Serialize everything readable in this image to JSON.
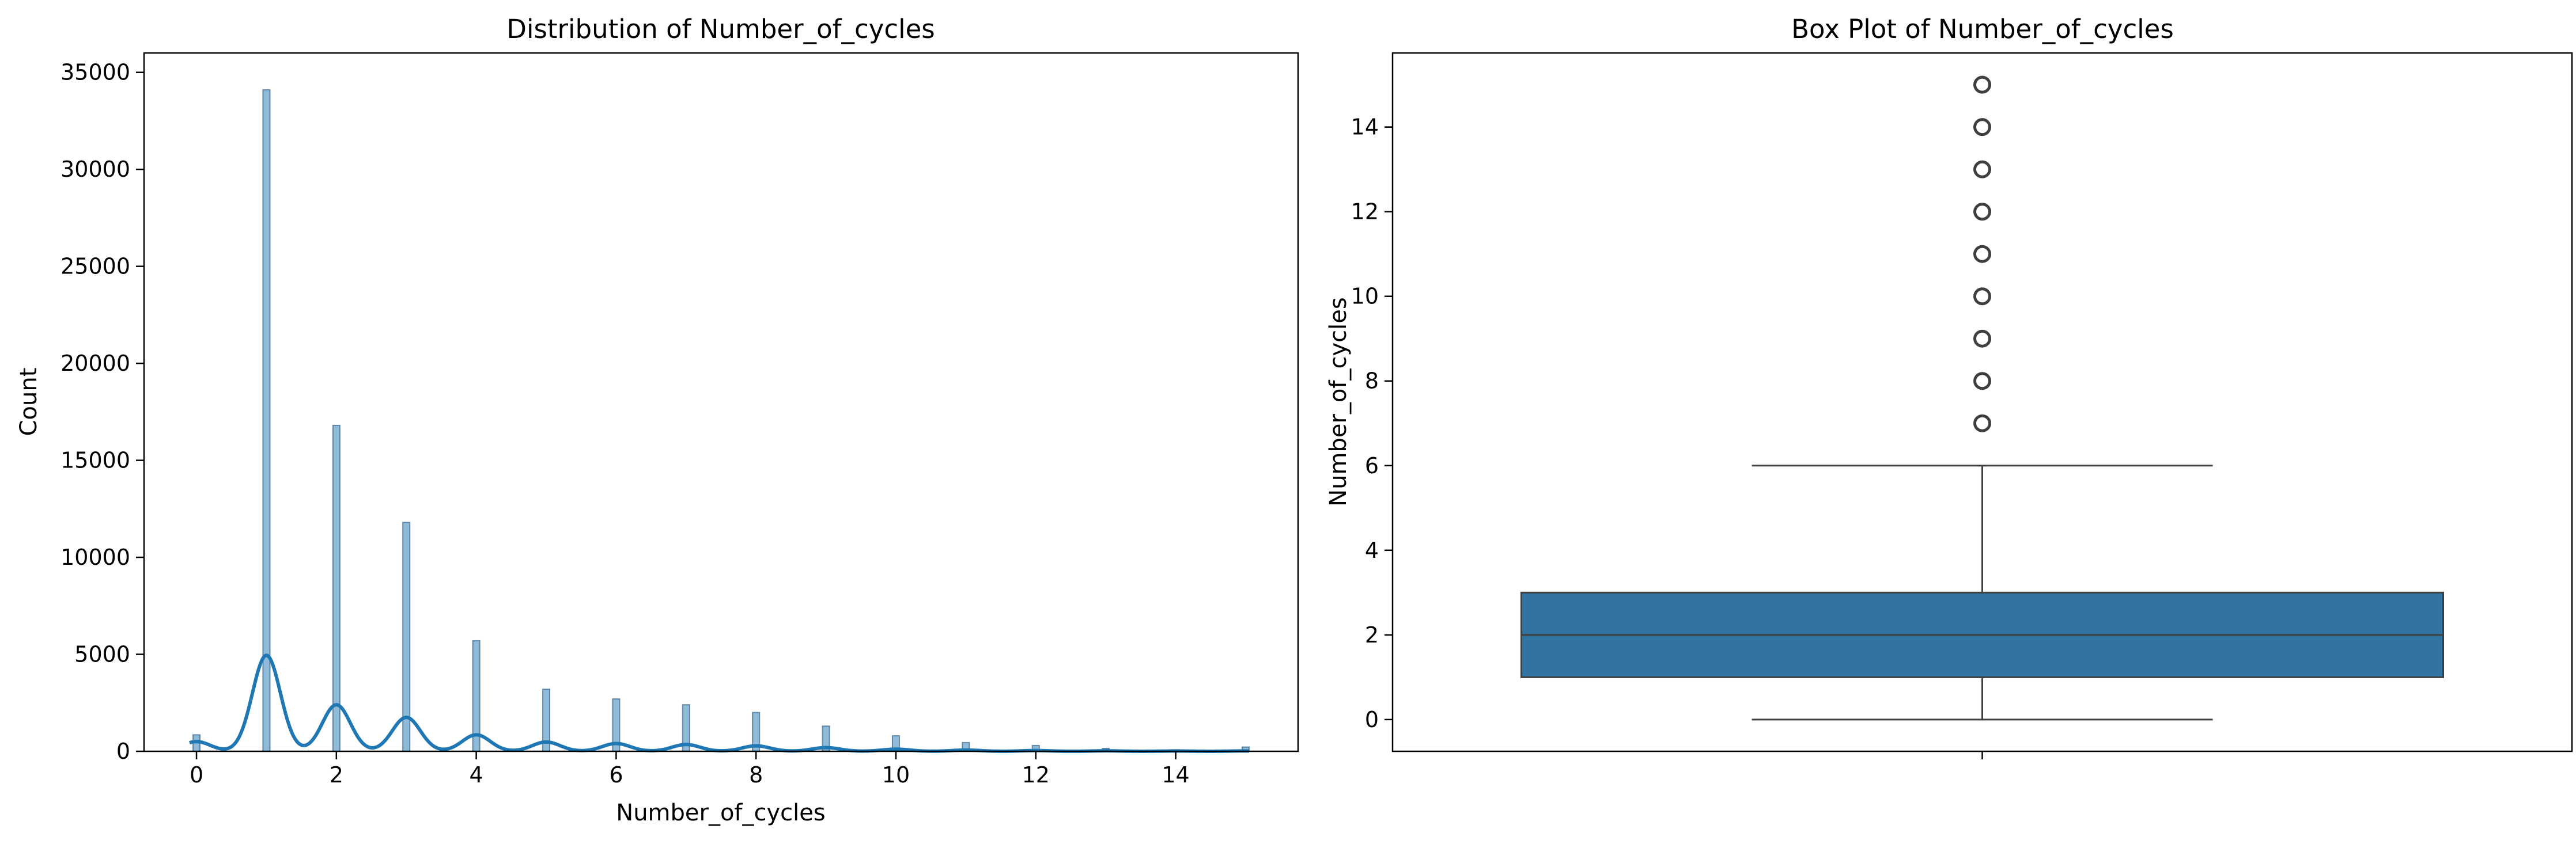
{
  "chart_data": [
    {
      "type": "bar",
      "subtype": "histogram-with-kde",
      "title": "Distribution of Number_of_cycles",
      "xlabel": "Number_of_cycles",
      "ylabel": "Count",
      "xlim": [
        -0.75,
        15.75
      ],
      "ylim": [
        0,
        36000
      ],
      "xticks": [
        0,
        2,
        4,
        6,
        8,
        10,
        12,
        14
      ],
      "yticks": [
        0,
        5000,
        10000,
        15000,
        20000,
        25000,
        30000,
        35000
      ],
      "grid": false,
      "legend": null,
      "bar_color": "#1f77b4",
      "bar_alpha": 0.5,
      "bins": [
        {
          "x": 0,
          "count": 850
        },
        {
          "x": 1,
          "count": 34100
        },
        {
          "x": 2,
          "count": 16800
        },
        {
          "x": 3,
          "count": 11800
        },
        {
          "x": 4,
          "count": 5700
        },
        {
          "x": 5,
          "count": 3200
        },
        {
          "x": 6,
          "count": 2700
        },
        {
          "x": 7,
          "count": 2400
        },
        {
          "x": 8,
          "count": 2000
        },
        {
          "x": 9,
          "count": 1300
        },
        {
          "x": 10,
          "count": 800
        },
        {
          "x": 11,
          "count": 450
        },
        {
          "x": 12,
          "count": 300
        },
        {
          "x": 13,
          "count": 150
        },
        {
          "x": 14,
          "count": 80
        },
        {
          "x": 15,
          "count": 220
        }
      ],
      "kde": {
        "color": "#1f77b4",
        "peaks": [
          {
            "x": 0,
            "y": 500
          },
          {
            "x": 1,
            "y": 4950
          },
          {
            "x": 2,
            "y": 2400
          },
          {
            "x": 3,
            "y": 1750
          },
          {
            "x": 4,
            "y": 850
          },
          {
            "x": 5,
            "y": 480
          },
          {
            "x": 6,
            "y": 400
          },
          {
            "x": 7,
            "y": 350
          },
          {
            "x": 8,
            "y": 280
          },
          {
            "x": 9,
            "y": 190
          },
          {
            "x": 10,
            "y": 110
          },
          {
            "x": 11,
            "y": 65
          },
          {
            "x": 12,
            "y": 40
          },
          {
            "x": 13,
            "y": 25
          },
          {
            "x": 14,
            "y": 15
          },
          {
            "x": 15,
            "y": 20
          }
        ]
      }
    },
    {
      "type": "box",
      "title": "Box Plot of Number_of_cycles",
      "xlabel": "",
      "ylabel": "Number_of_cycles",
      "ylim": [
        -0.75,
        15.75
      ],
      "yticks": [
        0,
        2,
        4,
        6,
        8,
        10,
        12,
        14
      ],
      "grid": false,
      "legend": null,
      "box_color": "#3274a1",
      "stats": {
        "whislo": 0,
        "q1": 1,
        "median": 2,
        "q3": 3,
        "whishi": 6
      },
      "outliers": [
        7,
        8,
        9,
        10,
        11,
        12,
        13,
        14,
        15
      ]
    }
  ]
}
